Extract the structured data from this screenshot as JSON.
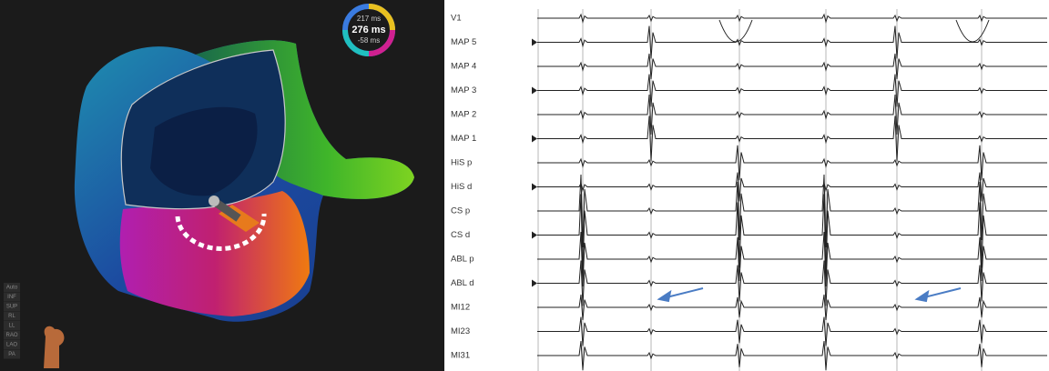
{
  "map": {
    "legend": {
      "upper": "217 ms",
      "range": "276 ms",
      "lower": "-58 ms"
    },
    "view_menu": [
      "Auto",
      "INF",
      "SUP",
      "RL",
      "LL",
      "RAO",
      "LAO",
      "PA"
    ]
  },
  "tracings": {
    "channels": [
      "V1",
      "MAP 5",
      "MAP 4",
      "MAP 3",
      "MAP 2",
      "MAP 1",
      "HiS p",
      "HiS d",
      "CS p",
      "CS d",
      "ABL p",
      "ABL d",
      "MI12",
      "MI23",
      "MI31"
    ]
  }
}
